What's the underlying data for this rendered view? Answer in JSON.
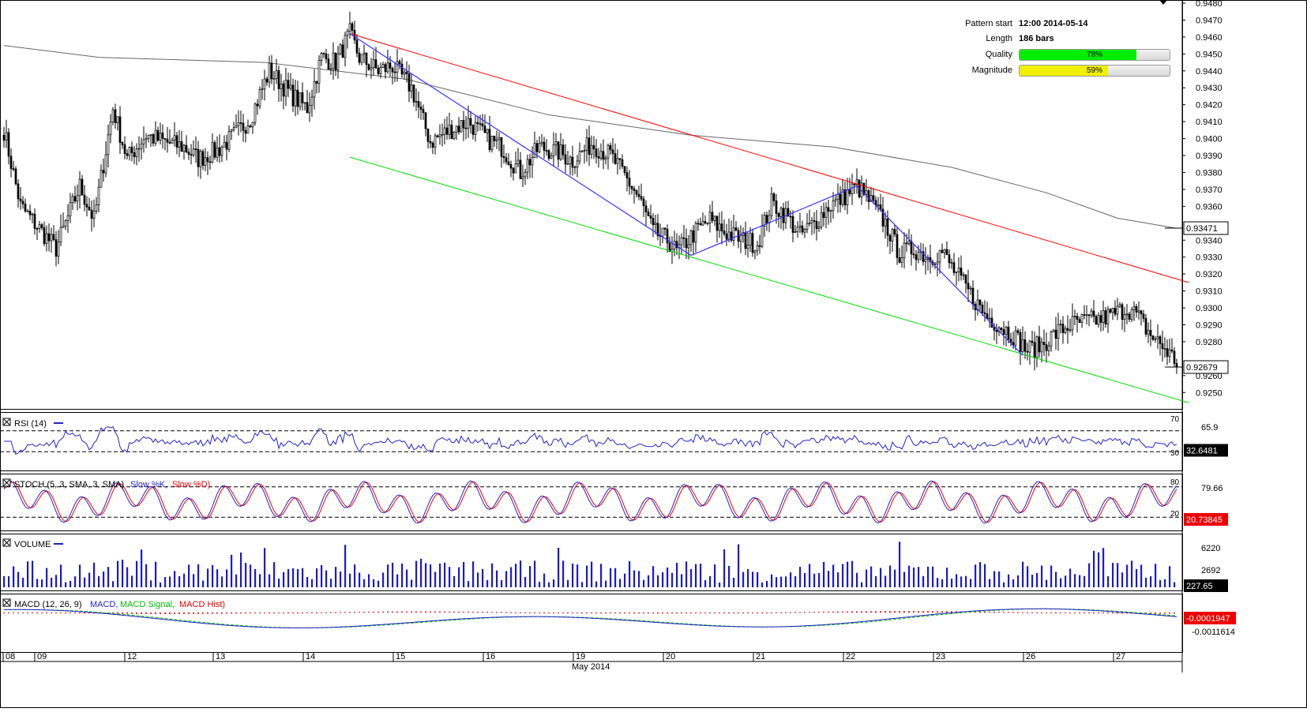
{
  "pattern_info": {
    "pattern_start_label": "Pattern start",
    "pattern_start_value": "12:00 2014-05-14",
    "length_label": "Length",
    "length_value": "186 bars",
    "quality_label": "Quality",
    "quality_value": "78%",
    "quality_fraction": 0.78,
    "quality_color": "#00ee00",
    "magnitude_label": "Magnitude",
    "magnitude_value": "59%",
    "magnitude_fraction": 0.59,
    "magnitude_color": "#f0f000"
  },
  "x_axis": {
    "ticks": [
      "08",
      "09",
      "12",
      "13",
      "14",
      "15",
      "16",
      "19",
      "20",
      "21",
      "22",
      "23",
      "26",
      "27"
    ],
    "month_label": "May 2014"
  },
  "panels": {
    "rsi": {
      "label": "RSI (14)",
      "levels": [
        "70",
        "30"
      ],
      "scale_value": "65.9",
      "last_value": "32.6481"
    },
    "stoch": {
      "label_prefix": "STOCH (5, 3, SMA, 3, SMA)",
      "k_label": "Slow %K,",
      "d_label": "Slow %D)",
      "levels": [
        "80",
        "20"
      ],
      "scale_value": "79.66",
      "last_value": "20.73845"
    },
    "volume": {
      "label": "VOLUME",
      "scale_values": [
        "6220",
        "2692"
      ],
      "last_value": "227.65"
    },
    "macd": {
      "label_prefix": "MACD (12, 26, 9)",
      "macd_label": "MACD,",
      "signal_label": "MACD Signal,",
      "hist_label": "MACD Hist)",
      "scale_value": "-0.0011614",
      "last_value": "-0.0001947"
    }
  },
  "chart_data": {
    "type": "candlestick",
    "instrument_last_price": "0.92679",
    "sma_last_value": "0.93471",
    "y_axis": {
      "min": 0.9245,
      "max": 0.948,
      "ticks": [
        "0.9480",
        "0.9470",
        "0.9460",
        "0.9450",
        "0.9440",
        "0.9430",
        "0.9420",
        "0.9410",
        "0.9400",
        "0.9390",
        "0.9380",
        "0.9370",
        "0.9360",
        "0.9340",
        "0.9330",
        "0.9320",
        "0.9310",
        "0.9300",
        "0.9290",
        "0.9280",
        "0.9260",
        "0.9250"
      ]
    },
    "close_path": [
      [
        0,
        0.9405
      ],
      [
        7,
        0.936
      ],
      [
        13,
        0.935
      ],
      [
        22,
        0.9335
      ],
      [
        32,
        0.9372
      ],
      [
        38,
        0.9352
      ],
      [
        46,
        0.9418
      ],
      [
        52,
        0.9388
      ],
      [
        60,
        0.9402
      ],
      [
        68,
        0.9398
      ],
      [
        76,
        0.9395
      ],
      [
        82,
        0.9388
      ],
      [
        90,
        0.9393
      ],
      [
        98,
        0.9403
      ],
      [
        104,
        0.9412
      ],
      [
        112,
        0.944
      ],
      [
        122,
        0.9425
      ],
      [
        128,
        0.9418
      ],
      [
        134,
        0.9448
      ],
      [
        140,
        0.9445
      ],
      [
        146,
        0.9462
      ],
      [
        150,
        0.9448
      ],
      [
        158,
        0.944
      ],
      [
        164,
        0.9443
      ],
      [
        172,
        0.943
      ],
      [
        180,
        0.9398
      ],
      [
        188,
        0.9405
      ],
      [
        196,
        0.941
      ],
      [
        204,
        0.94
      ],
      [
        210,
        0.9395
      ],
      [
        218,
        0.938
      ],
      [
        226,
        0.9395
      ],
      [
        234,
        0.9392
      ],
      [
        240,
        0.9387
      ],
      [
        248,
        0.9397
      ],
      [
        256,
        0.939
      ],
      [
        262,
        0.9378
      ],
      [
        268,
        0.9365
      ],
      [
        274,
        0.9345
      ],
      [
        280,
        0.934
      ],
      [
        284,
        0.9333
      ],
      [
        292,
        0.9345
      ],
      [
        298,
        0.9352
      ],
      [
        304,
        0.9345
      ],
      [
        312,
        0.934
      ],
      [
        318,
        0.9338
      ],
      [
        324,
        0.9362
      ],
      [
        330,
        0.9355
      ],
      [
        336,
        0.9343
      ],
      [
        342,
        0.935
      ],
      [
        348,
        0.936
      ],
      [
        354,
        0.9365
      ],
      [
        360,
        0.9372
      ],
      [
        366,
        0.9362
      ],
      [
        372,
        0.935
      ],
      [
        378,
        0.9332
      ],
      [
        384,
        0.9335
      ],
      [
        390,
        0.933
      ],
      [
        396,
        0.9333
      ],
      [
        402,
        0.932
      ],
      [
        408,
        0.9308
      ],
      [
        414,
        0.9296
      ],
      [
        420,
        0.929
      ],
      [
        426,
        0.9284
      ],
      [
        432,
        0.9275
      ],
      [
        438,
        0.9278
      ],
      [
        444,
        0.9285
      ],
      [
        450,
        0.929
      ],
      [
        456,
        0.9292
      ],
      [
        462,
        0.9293
      ],
      [
        468,
        0.9296
      ],
      [
        474,
        0.93
      ],
      [
        478,
        0.9296
      ],
      [
        484,
        0.9284
      ],
      [
        490,
        0.9276
      ],
      [
        495,
        0.9268
      ]
    ],
    "sma_path": [
      [
        0,
        0.9455
      ],
      [
        40,
        0.9448
      ],
      [
        110,
        0.9445
      ],
      [
        170,
        0.9435
      ],
      [
        230,
        0.9414
      ],
      [
        290,
        0.9402
      ],
      [
        350,
        0.9395
      ],
      [
        400,
        0.9383
      ],
      [
        440,
        0.9368
      ],
      [
        470,
        0.9353
      ],
      [
        495,
        0.9347
      ]
    ],
    "channel_upper": [
      [
        146,
        0.9462
      ],
      [
        500,
        0.9315
      ]
    ],
    "channel_lower": [
      [
        146,
        0.9389
      ],
      [
        500,
        0.9244
      ]
    ],
    "pattern_zigzag": [
      [
        146,
        0.9462
      ],
      [
        290,
        0.9331
      ],
      [
        360,
        0.9372
      ],
      [
        430,
        0.9272
      ]
    ],
    "bar_count": 496,
    "series": [
      {
        "name": "Slow %K"
      },
      {
        "name": "Slow %D"
      },
      {
        "name": "MACD"
      },
      {
        "name": "MACD Signal"
      },
      {
        "name": "MACD Hist"
      }
    ]
  }
}
